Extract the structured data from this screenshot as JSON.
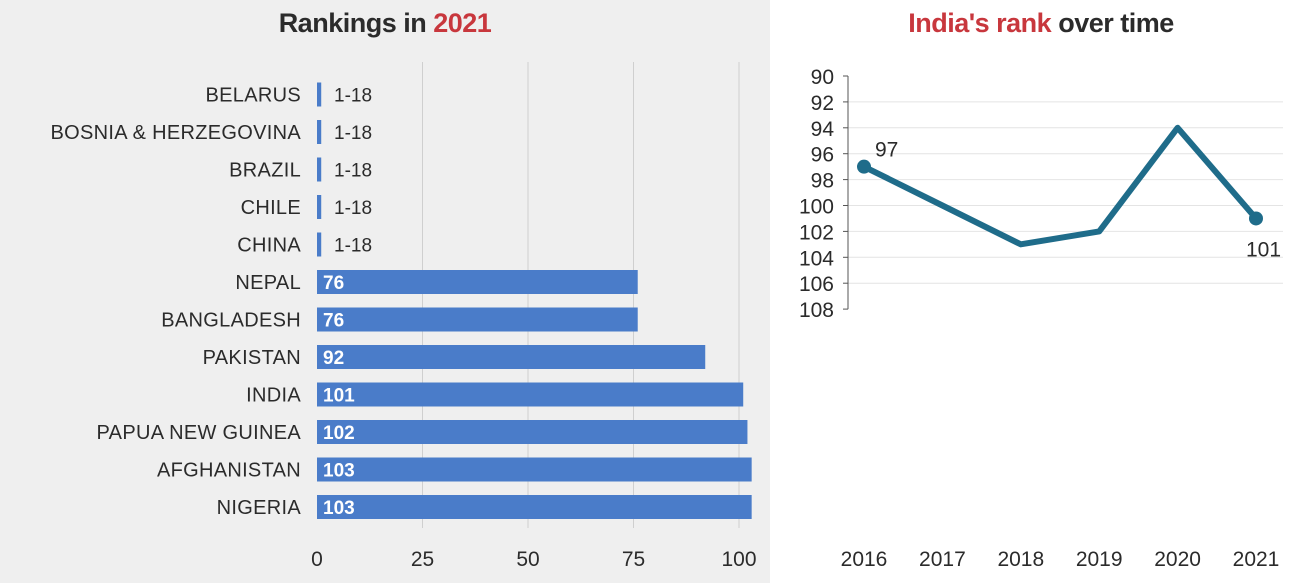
{
  "chart_data": [
    {
      "type": "bar",
      "orientation": "horizontal",
      "title_prefix": "Rankings in ",
      "title_highlight": "2021",
      "categories": [
        "BELARUS",
        "BOSNIA & HERZEGOVINA",
        "BRAZIL",
        "CHILE",
        "CHINA",
        "NEPAL",
        "BANGLADESH",
        "PAKISTAN",
        "INDIA",
        "PAPUA NEW GUINEA",
        "AFGHANISTAN",
        "NIGERIA"
      ],
      "values": [
        1,
        1,
        1,
        1,
        1,
        76,
        76,
        92,
        101,
        102,
        103,
        103
      ],
      "data_labels": [
        "1-18",
        "1-18",
        "1-18",
        "1-18",
        "1-18",
        "76",
        "76",
        "92",
        "101",
        "102",
        "103",
        "103"
      ],
      "xticks": [
        "0",
        "25",
        "50",
        "75",
        "100"
      ],
      "xlim": [
        0,
        105
      ],
      "grid": true,
      "bar_color": "#4a7cc9",
      "highlight_color": "#c8373d"
    },
    {
      "type": "line",
      "title_highlight": "India's rank",
      "title_suffix": " over time",
      "x": [
        "2016",
        "2017",
        "2018",
        "2019",
        "2020",
        "2021"
      ],
      "values": [
        97,
        100,
        103,
        102,
        94,
        101
      ],
      "point_labels": [
        {
          "index": 0,
          "text": "97"
        },
        {
          "index": 5,
          "text": "101"
        }
      ],
      "yticks": [
        "90",
        "92",
        "94",
        "96",
        "98",
        "100",
        "102",
        "104",
        "106",
        "108"
      ],
      "ylim": [
        90,
        108
      ],
      "y_inverted": true,
      "grid": true,
      "line_color": "#1f6c8a",
      "highlight_color": "#c8373d"
    }
  ]
}
